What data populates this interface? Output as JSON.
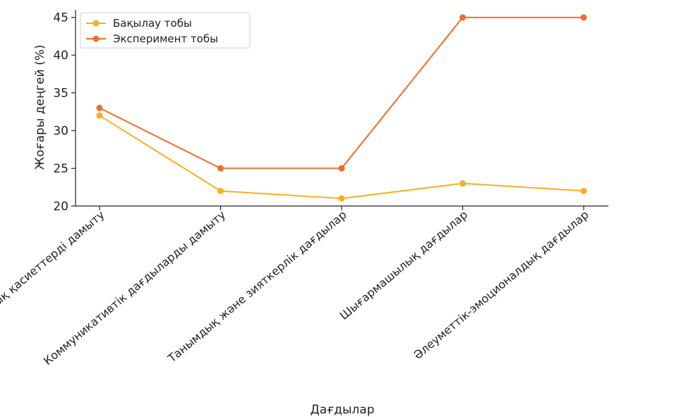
{
  "chart_data": {
    "type": "line",
    "categories": [
      "Физикалық қасиеттерді дамыту",
      "Коммуникативтік дағдыларды дамыту",
      "Танымдық және зияткерлік дағдылар",
      "Шығармашылық дағдылар",
      "Әлеуметтік-эмоционалдық дағдылар"
    ],
    "series": [
      {
        "name": "Бақылау тобы",
        "values": [
          32,
          22,
          21,
          23,
          22
        ],
        "color": "#F7B11E"
      },
      {
        "name": "Эксперимент тобы",
        "values": [
          33,
          25,
          25,
          45,
          45
        ],
        "color": "#EE6E2A"
      }
    ],
    "xlabel": "Дағдылар",
    "ylabel": "Жоғары деңгей (%)",
    "ylim": [
      20,
      46
    ],
    "yticks": [
      20,
      25,
      30,
      35,
      40,
      45
    ],
    "grid": false,
    "legend_position": "top-left"
  }
}
